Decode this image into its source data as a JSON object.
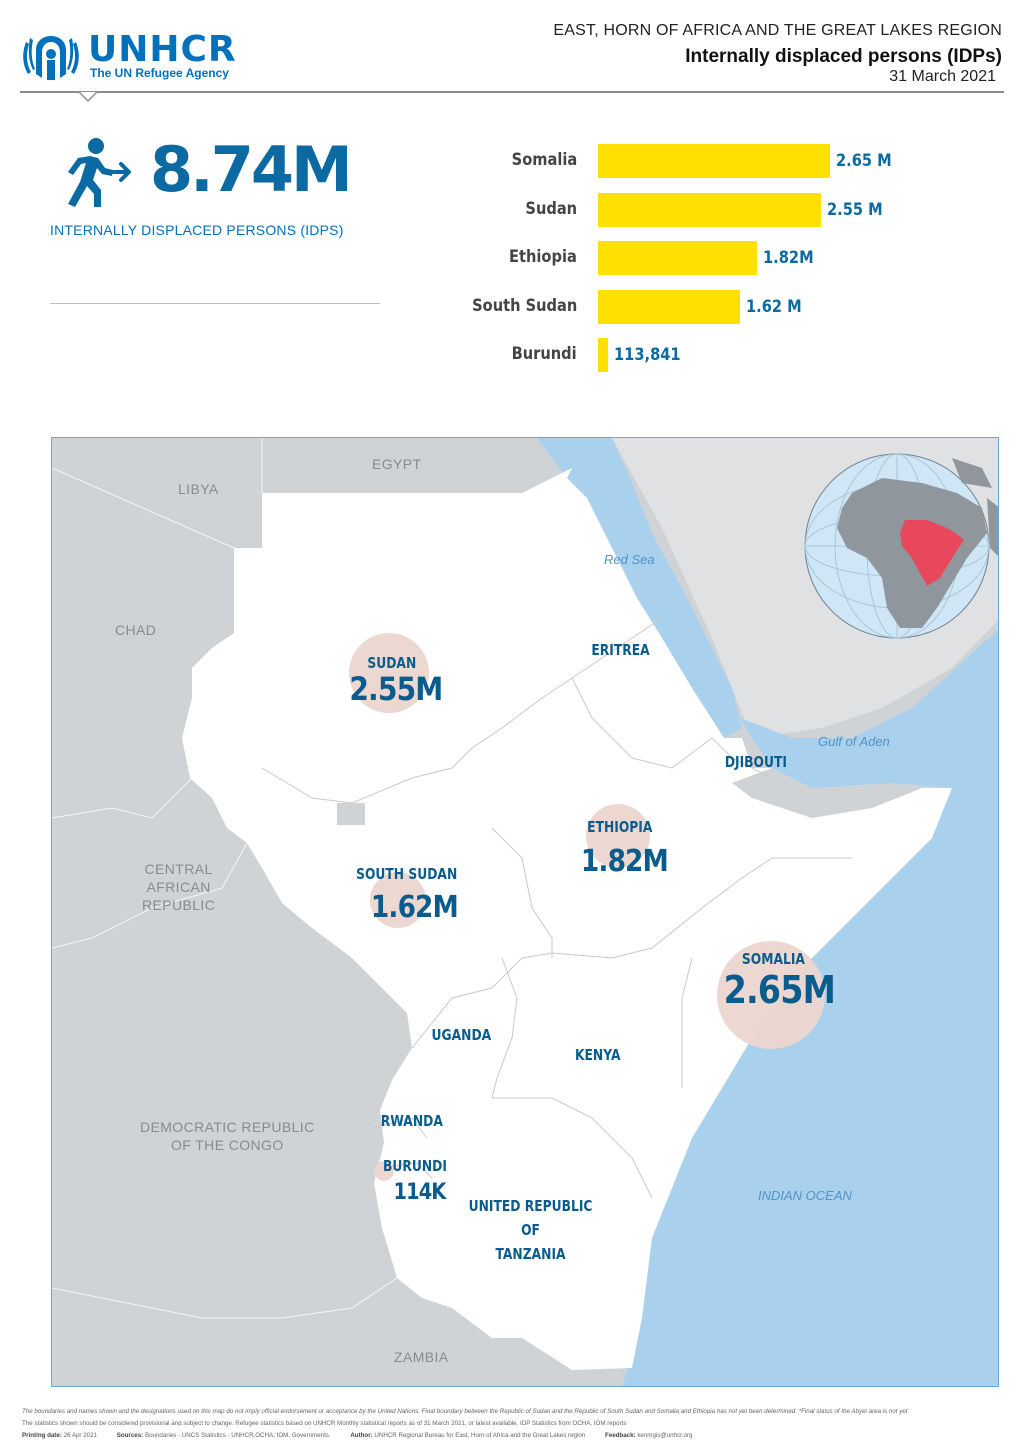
{
  "header": {
    "org_name": "UNHCR",
    "org_tagline": "The UN Refugee Agency",
    "region": "EAST, HORN OF AFRICA AND THE GREAT LAKES REGION",
    "title": "Internally displaced persons (IDPs)",
    "date": "31 March 2021"
  },
  "kpi": {
    "icon": "person-moving-icon",
    "value": "8.74M",
    "label": "INTERNALLY DISPLACED PERSONS (IDPS)"
  },
  "colors": {
    "bar": "#ffe000",
    "brand_blue": "#0072bc",
    "highlight_region": "#e8485c",
    "bubble": "#ecd6cf",
    "water": "#a9d1ee",
    "neighbor_land": "#cfd3d6"
  },
  "bar_chart": {
    "items": [
      {
        "country": "Somalia",
        "label": "2.65 M",
        "value": 2650000
      },
      {
        "country": "Sudan",
        "label": "2.55 M",
        "value": 2550000
      },
      {
        "country": "Ethiopia",
        "label": "1.82M",
        "value": 1820000
      },
      {
        "country": "South Sudan",
        "label": "1.62 M",
        "value": 1620000
      },
      {
        "country": "Burundi",
        "label": "113,841",
        "value": 113841
      }
    ]
  },
  "map": {
    "neighbors": {
      "egypt": "EGYPT",
      "libya": "LIBYA",
      "chad": "CHAD",
      "car": [
        "CENTRAL",
        "AFRICAN",
        "REPUBLIC"
      ],
      "drc": [
        "DEMOCRATIC REPUBLIC",
        "OF THE CONGO"
      ],
      "zambia": "ZAMBIA"
    },
    "water": {
      "red_sea": "Red Sea",
      "gulf_of_aden": "Gulf of Aden",
      "indian_ocean": "INDIAN OCEAN"
    },
    "countries": {
      "sudan": {
        "name": "SUDAN",
        "value": "2.55M",
        "idps": 2550000
      },
      "south_sudan": {
        "name": "SOUTH SUDAN",
        "value": "1.62M",
        "idps": 1620000
      },
      "ethiopia": {
        "name": "ETHIOPIA",
        "value": "1.82M",
        "idps": 1820000
      },
      "somalia": {
        "name": "SOMALIA",
        "value": "2.65M",
        "idps": 2650000
      },
      "burundi": {
        "name": "BURUNDI",
        "value": "114K",
        "idps": 113841
      },
      "eritrea": "ERITREA",
      "djibouti": "DJIBOUTI",
      "uganda": "UGANDA",
      "kenya": "KENYA",
      "rwanda": "RWANDA",
      "tanzania": [
        "UNITED REPUBLIC",
        "OF",
        "TANZANIA"
      ]
    },
    "inset": "globe-locator-icon"
  },
  "footer": {
    "disclaimer": "The boundaries and names shown and the designations used on this map do not imply official endorsement or acceptance by the United Nations. Final boundary between the Republic of Sudan and the Republic of South Sudan and Somalia and Ethiopia has not yet been determined. *Final status of the Abyei area is not yet",
    "provisional": "The statistics shown should be considered provisional and subject to change. Refugee statistics based on UNHCR Monthly statistical reports as of 31 March 2021, or latest available. IDP Statistics from OCHA, IOM reports",
    "printing_label": "Printing date:",
    "printing_date": "26 Apr 2021",
    "sources_label": "Sources:",
    "sources": "Boundaries - UNCS Statistics - UNHCR,OCHA, IOM, Governments.",
    "author_label": "Author:",
    "author": "UNHCR Regional Bureau for East, Horn of Africa and the Great Lakes region",
    "feedback_label": "Feedback:",
    "feedback": "kenmgis@unhcr.org"
  }
}
